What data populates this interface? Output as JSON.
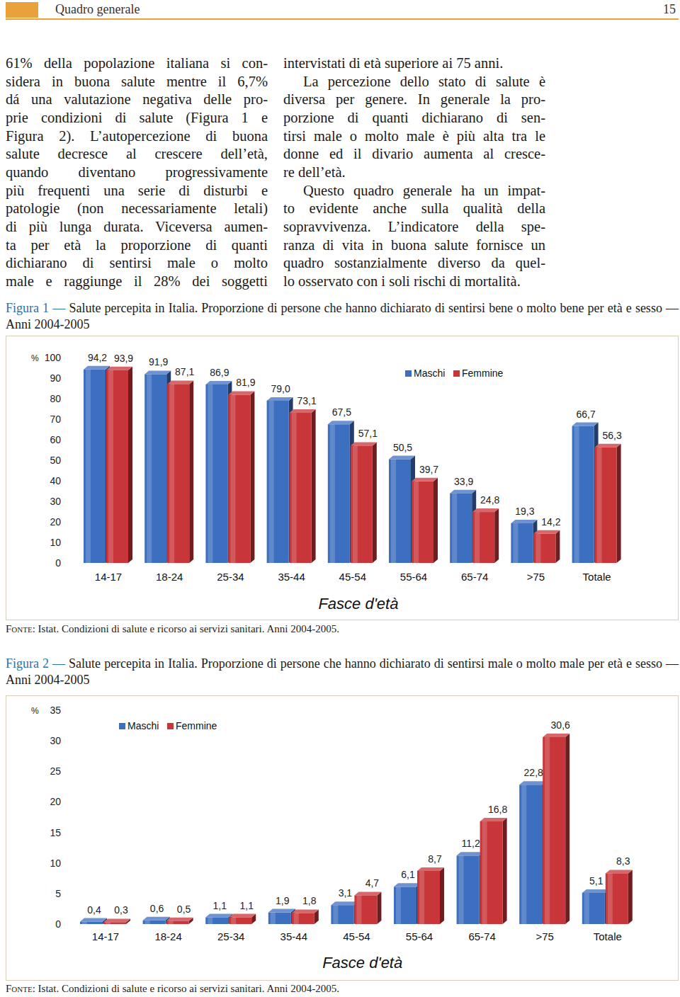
{
  "header": {
    "title": "Quadro generale",
    "page": "15"
  },
  "body": {
    "columns": [
      [
        [
          "61% della popolazione italiana si con-",
          "sidera in buona salute mentre il 6,7%",
          "dá una valutazione negativa delle pro-",
          "prie condizioni di salute (Figura 1 e",
          "Figura 2). L’autopercezione di buona",
          "salute decresce al crescere dell’età,",
          "quando diventano progressivamente",
          "più frequenti una serie di disturbi e",
          "patologie (non necessariamente letali)",
          "di più lunga durata. Viceversa aumen-",
          "ta per età la proporzione di quanti",
          "dichiarano di sentirsi male o molto",
          "male e raggiunge il 28% dei soggetti"
        ]
      ],
      [
        [
          "intervistati di età superiore ai 75 anni."
        ],
        [
          "La percezione dello stato di salute è",
          "diversa per genere. In generale la pro-",
          "porzione di quanti dichiarano di sen-",
          "tirsi male o molto male è più alta tra le",
          "donne ed il divario aumenta al cresce-",
          "re dell’età."
        ],
        [
          "Questo quadro generale ha un impat-",
          "to evidente anche sulla qualità della",
          "sopravvivenza. L’indicatore della spe-",
          "ranza di vita in buona salute fornisce un",
          "quadro sostanzialmente diverso da quel-",
          "lo osservato con i soli rischi di mortalità."
        ]
      ]
    ]
  },
  "chart_data": [
    {
      "type": "bar",
      "label": "Figura 1 —",
      "title": "Salute percepita in Italia. Proporzione di persone che hanno dichiarato di sentirsi bene o molto bene per età e sesso — Anni 2004-2005",
      "source_label": "Fonte:",
      "source": "Istat. Condizioni di salute e ricorso ai servizi sanitari. Anni 2004-2005.",
      "xlabel": "Fasce d'età",
      "ylabel": "%",
      "categories": [
        "14-17",
        "18-24",
        "25-34",
        "35-44",
        "45-54",
        "55-64",
        "65-74",
        ">75",
        "Totale"
      ],
      "series": [
        {
          "name": "Maschi",
          "color": "#3d6fc0",
          "values": [
            94.2,
            91.9,
            86.9,
            79.0,
            67.5,
            50.5,
            33.9,
            19.3,
            66.7
          ],
          "value_labels": [
            "94,2",
            "91,9",
            "86,9",
            "79,0",
            "67,5",
            "50,5",
            "33,9",
            "19,3",
            "66,7"
          ]
        },
        {
          "name": "Femmine",
          "color": "#c8363a",
          "values": [
            93.9,
            87.1,
            81.9,
            73.1,
            57.1,
            39.7,
            24.8,
            14.2,
            56.3
          ],
          "value_labels": [
            "93,9",
            "87,1",
            "81,9",
            "73,1",
            "57,1",
            "39,7",
            "24,8",
            "14,2",
            "56,3"
          ]
        }
      ],
      "ylim": [
        0,
        100
      ],
      "yticks": [
        0,
        10,
        20,
        30,
        40,
        50,
        60,
        70,
        80,
        90,
        100
      ],
      "grid": false,
      "legend": "top-right",
      "data_labels": true
    },
    {
      "type": "bar",
      "label": "Figura 2 —",
      "title": "Salute percepita in Italia. Proporzione di persone che hanno dichiarato di sentirsi male o molto male per età e sesso — Anni 2004-2005",
      "source_label": "Fonte:",
      "source": "Istat. Condizioni di salute e ricorso ai servizi sanitari. Anni 2004-2005.",
      "xlabel": "Fasce d'età",
      "ylabel": "%",
      "categories": [
        "14-17",
        "18-24",
        "25-34",
        "35-44",
        "45-54",
        "55-64",
        "65-74",
        ">75",
        "Totale"
      ],
      "series": [
        {
          "name": "Maschi",
          "color": "#3d6fc0",
          "values": [
            0.4,
            0.6,
            1.1,
            1.9,
            3.1,
            6.1,
            11.2,
            22.8,
            5.1
          ],
          "value_labels": [
            "0,4",
            "0,6",
            "1,1",
            "1,9",
            "3,1",
            "6,1",
            "11,2",
            "22,8",
            "5,1"
          ]
        },
        {
          "name": "Femmine",
          "color": "#c8363a",
          "values": [
            0.3,
            0.5,
            1.1,
            1.8,
            4.7,
            8.7,
            16.8,
            30.6,
            8.3
          ],
          "value_labels": [
            "0,3",
            "0,5",
            "1,1",
            "1,8",
            "4,7",
            "8,7",
            "16,8",
            "30,6",
            "8,3"
          ]
        }
      ],
      "ylim": [
        0,
        35
      ],
      "yticks": [
        0,
        5,
        10,
        15,
        20,
        25,
        30,
        35
      ],
      "grid": false,
      "legend": "top-left",
      "data_labels": true
    }
  ]
}
